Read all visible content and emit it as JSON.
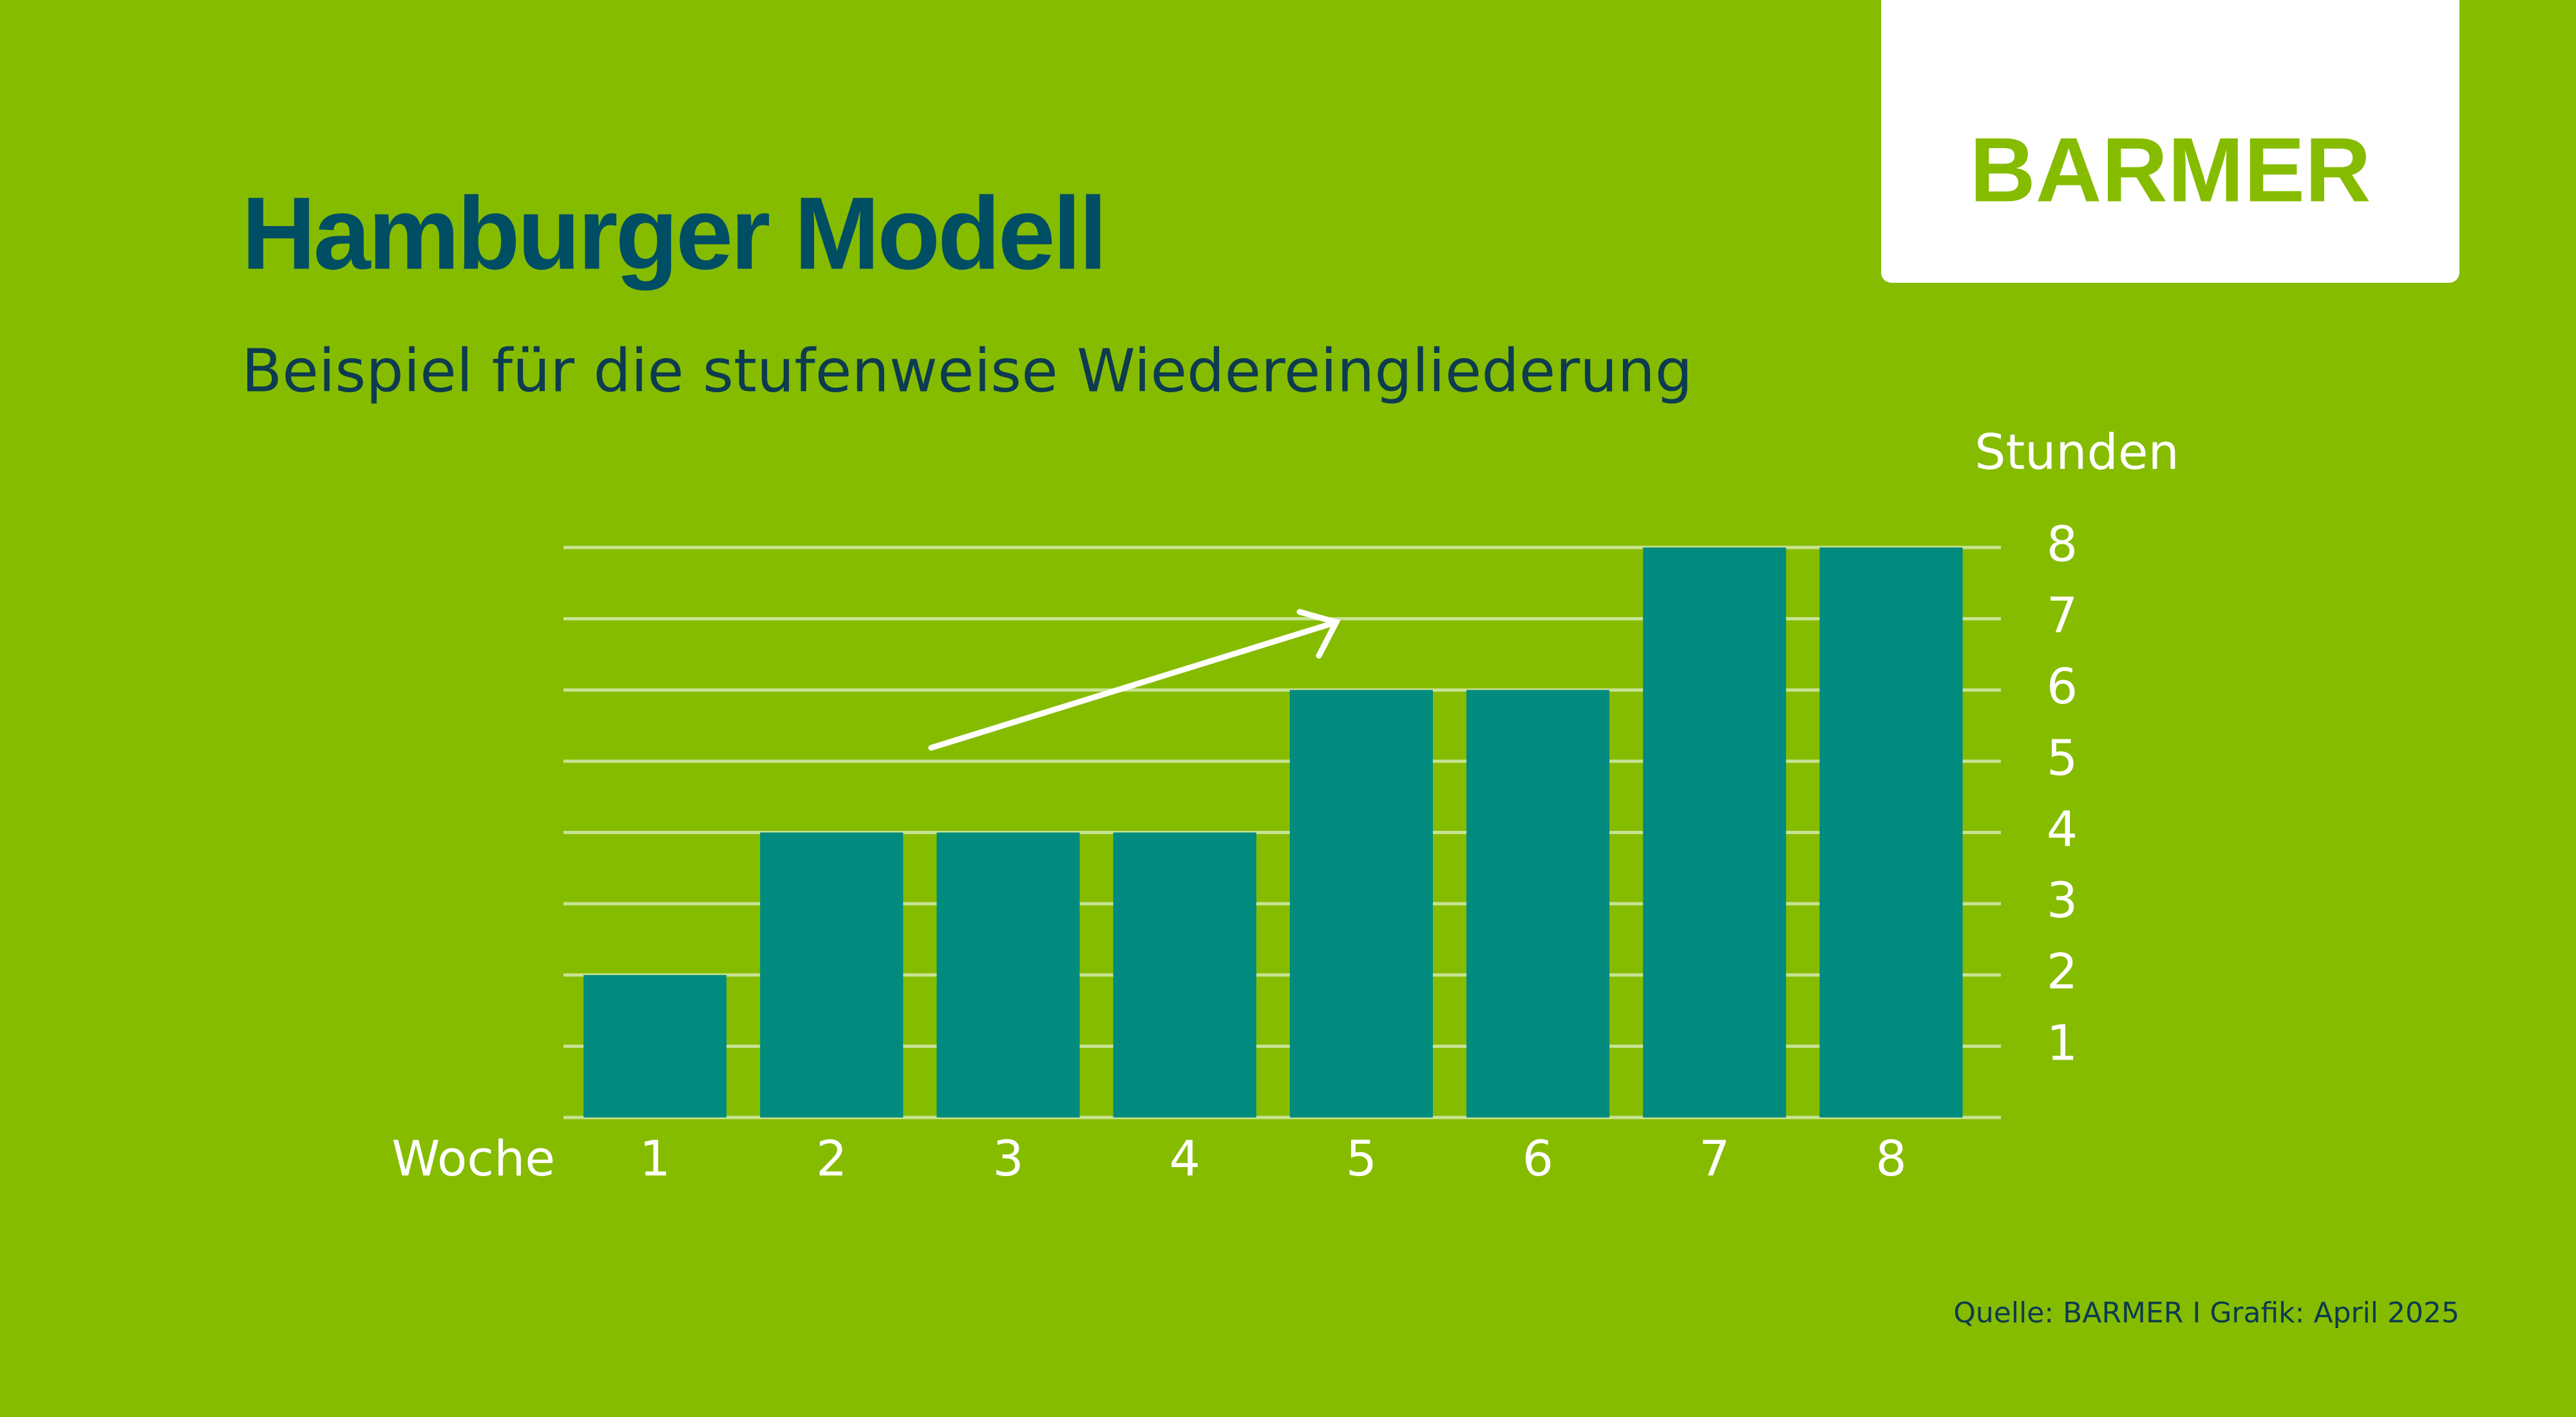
{
  "logo": "BARMER",
  "chart_data": {
    "type": "bar",
    "title": "Hamburger Modell",
    "subtitle": "Beispiel für die stufenweise Wiedereingliederung",
    "x_label": "Woche",
    "y_label": "Stunden",
    "categories": [
      "1",
      "2",
      "3",
      "4",
      "5",
      "6",
      "7",
      "8"
    ],
    "values": [
      2,
      4,
      4,
      4,
      6,
      6,
      8,
      8
    ],
    "color": "#008b7e",
    "ylim": [
      0,
      8
    ],
    "yticks": [
      1,
      2,
      3,
      4,
      5,
      6,
      7,
      8
    ],
    "grid": true
  },
  "source": "Quelle: BARMER I Grafik: April 2025"
}
